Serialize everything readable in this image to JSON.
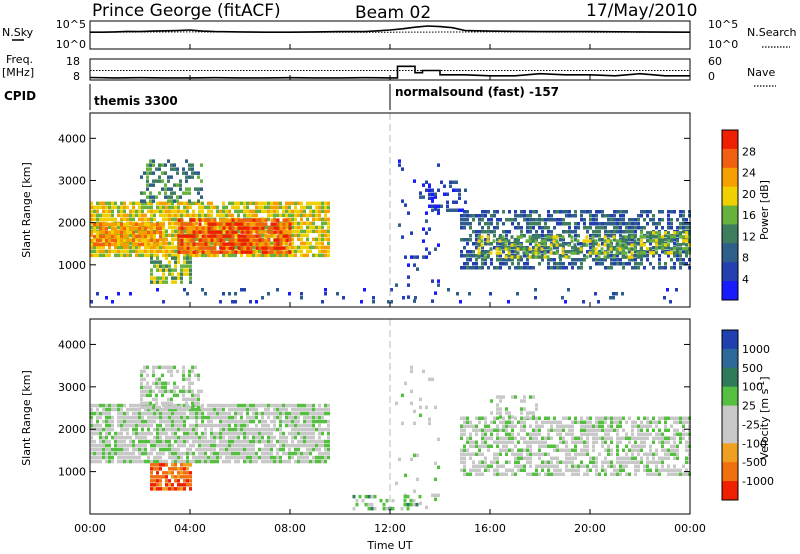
{
  "header": {
    "station": "Prince George (fitACF)",
    "beam": "Beam 02",
    "date": "17/May/2010"
  },
  "strip_labels": {
    "nsky": "N.Sky",
    "nsearch": "N.Search",
    "freq_top": "Freq.",
    "freq_unit": "[MHz]",
    "nave": "Nave",
    "cpid": "CPID"
  },
  "cpid_entries": [
    {
      "label": "themis 3300",
      "start": "00:00"
    },
    {
      "label": "normalsound (fast) -157",
      "start": "12:00"
    }
  ],
  "colors": {
    "power_scale": [
      "#1a1aff",
      "#233fb0",
      "#2f5e8a",
      "#3e7d5e",
      "#66b23c",
      "#f0d000",
      "#f5a000",
      "#f06010",
      "#ee2000"
    ],
    "velocity_scale": [
      "#2040b0",
      "#2c6a9a",
      "#2e7b5a",
      "#55c040",
      "#c8c8c8",
      "#c8c8c8",
      "#f0a020",
      "#f07010",
      "#ee2000"
    ]
  },
  "chart_data": [
    {
      "type": "line",
      "panel": "noise",
      "series": [
        {
          "name": "N.Sky",
          "style": "solid",
          "x": [
            0,
            0.5,
            1,
            1.5,
            2,
            2.5,
            3,
            3.5,
            4,
            4.5,
            5,
            6,
            7,
            8,
            9,
            10,
            11,
            12,
            12.5,
            13,
            13.5,
            14,
            14.5,
            15,
            16,
            18,
            20,
            22,
            24
          ],
          "y": [
            3.0,
            3.0,
            3.05,
            3.15,
            3.1,
            3.2,
            3.25,
            3.3,
            3.4,
            3.2,
            3.1,
            3.05,
            3.0,
            3.0,
            3.05,
            3.1,
            3.1,
            3.4,
            3.6,
            3.9,
            4.1,
            4.0,
            3.8,
            3.3,
            3.2,
            3.1,
            3.1,
            3.05,
            3.0
          ]
        },
        {
          "name": "N.Search",
          "style": "dotted",
          "x": [
            0,
            4,
            8,
            12,
            16,
            20,
            24
          ],
          "y": [
            3.0,
            3.05,
            3.0,
            3.0,
            3.05,
            3.0,
            3.0
          ]
        }
      ],
      "y_left_ticks": [
        "10^5",
        "10^0"
      ],
      "y_right_ticks": [
        "10^5",
        "10^0"
      ],
      "ylim": [
        0,
        5
      ],
      "xlim": [
        0,
        24
      ]
    },
    {
      "type": "line",
      "panel": "frequency_nave",
      "series": [
        {
          "name": "Freq.",
          "style": "solid",
          "x": [
            0,
            1,
            2,
            3,
            4,
            5,
            6,
            7,
            8,
            9,
            10,
            11,
            12,
            12.3,
            12.3,
            13,
            13,
            13.3,
            13.3,
            14,
            14,
            15,
            16,
            17,
            18,
            19,
            20,
            21,
            22,
            23,
            24
          ],
          "y": [
            9.2,
            9.0,
            9.1,
            9.0,
            9.0,
            9.1,
            9.0,
            9.0,
            9.1,
            9.0,
            9.0,
            9.1,
            9.0,
            9.0,
            14.5,
            14.5,
            11.5,
            11.5,
            12.5,
            12.5,
            10.5,
            10.5,
            10.0,
            10.0,
            11.0,
            10.5,
            10.5,
            10.0,
            11.0,
            10.0,
            10.0
          ]
        },
        {
          "name": "Nave",
          "style": "dotted",
          "x": [
            0,
            24
          ],
          "y": [
            12.5,
            12.5
          ]
        }
      ],
      "y_left_ticks": [
        "18",
        "8"
      ],
      "y_right_ticks": [
        "60",
        "0"
      ],
      "ylim": [
        8,
        18
      ],
      "xlim": [
        0,
        24
      ]
    },
    {
      "type": "heatmap",
      "panel": "power",
      "ylabel": "Slant Range [km]",
      "colorbar_label": "Power [dB]",
      "colorbar_ticks": [
        "4",
        "8",
        "12",
        "16",
        "20",
        "24",
        "28"
      ],
      "y_ticks": [
        "1000",
        "2000",
        "3000",
        "4000"
      ],
      "ylim": [
        0,
        4600
      ],
      "xlim": [
        0,
        24
      ],
      "regions": [
        {
          "x0": 0,
          "x1": 9.6,
          "y0": 1200,
          "y1": 2500,
          "level": 5,
          "density": 0.85
        },
        {
          "x0": 3.5,
          "x1": 8.0,
          "y0": 1300,
          "y1": 2100,
          "level": 7,
          "density": 0.9
        },
        {
          "x0": 0,
          "x1": 3.0,
          "y0": 1500,
          "y1": 2000,
          "level": 6,
          "density": 0.85
        },
        {
          "x0": 2.0,
          "x1": 4.5,
          "y0": 2500,
          "y1": 3500,
          "level": 3,
          "density": 0.45
        },
        {
          "x0": 2.4,
          "x1": 4.0,
          "y0": 600,
          "y1": 1200,
          "level": 4,
          "density": 0.7
        },
        {
          "x0": 12.2,
          "x1": 14.0,
          "y0": 150,
          "y1": 3500,
          "level": 1,
          "density": 0.08
        },
        {
          "x0": 13.4,
          "x1": 15.0,
          "y0": 2300,
          "y1": 3000,
          "level": 1,
          "density": 0.35
        },
        {
          "x0": 14.8,
          "x1": 24,
          "y0": 900,
          "y1": 2300,
          "level": 2,
          "density": 0.6
        },
        {
          "x0": 15.5,
          "x1": 22.0,
          "y0": 1200,
          "y1": 1700,
          "level": 4,
          "density": 0.55
        },
        {
          "x0": 22.0,
          "x1": 24,
          "y0": 1300,
          "y1": 1800,
          "level": 4,
          "density": 0.7
        },
        {
          "x0": 0,
          "x1": 24,
          "y0": 150,
          "y1": 450,
          "level": 1,
          "density": 0.1
        }
      ]
    },
    {
      "type": "heatmap",
      "panel": "velocity",
      "ylabel": "Slant Range [km]",
      "xlabel": "Time UT",
      "colorbar_label": "Velocity [m s^-1]",
      "colorbar_ticks": [
        "1000",
        "500",
        "100",
        "25",
        "-25",
        "-100",
        "-500",
        "-1000"
      ],
      "y_ticks": [
        "1000",
        "2000",
        "3000",
        "4000"
      ],
      "x_ticks": [
        "00:00",
        "04:00",
        "08:00",
        "12:00",
        "16:00",
        "20:00",
        "00:00"
      ],
      "ylim": [
        0,
        4600
      ],
      "xlim": [
        0,
        24
      ],
      "regions": [
        {
          "x0": 0,
          "x1": 9.6,
          "y0": 1200,
          "y1": 2600,
          "level": 4,
          "density": 0.85
        },
        {
          "x0": 2.0,
          "x1": 4.5,
          "y0": 2500,
          "y1": 3500,
          "level": 4,
          "density": 0.5
        },
        {
          "x0": 2.4,
          "x1": 4.0,
          "y0": 600,
          "y1": 1200,
          "level": 7,
          "density": 0.9
        },
        {
          "x0": 12.2,
          "x1": 14.0,
          "y0": 150,
          "y1": 3500,
          "level": 4,
          "density": 0.08
        },
        {
          "x0": 10.5,
          "x1": 13.2,
          "y0": 150,
          "y1": 450,
          "level": 3,
          "density": 0.35
        },
        {
          "x0": 14.8,
          "x1": 24,
          "y0": 900,
          "y1": 2300,
          "level": 4,
          "density": 0.65
        },
        {
          "x0": 16.0,
          "x1": 18.0,
          "y0": 2300,
          "y1": 2800,
          "level": 4,
          "density": 0.35
        }
      ]
    }
  ]
}
